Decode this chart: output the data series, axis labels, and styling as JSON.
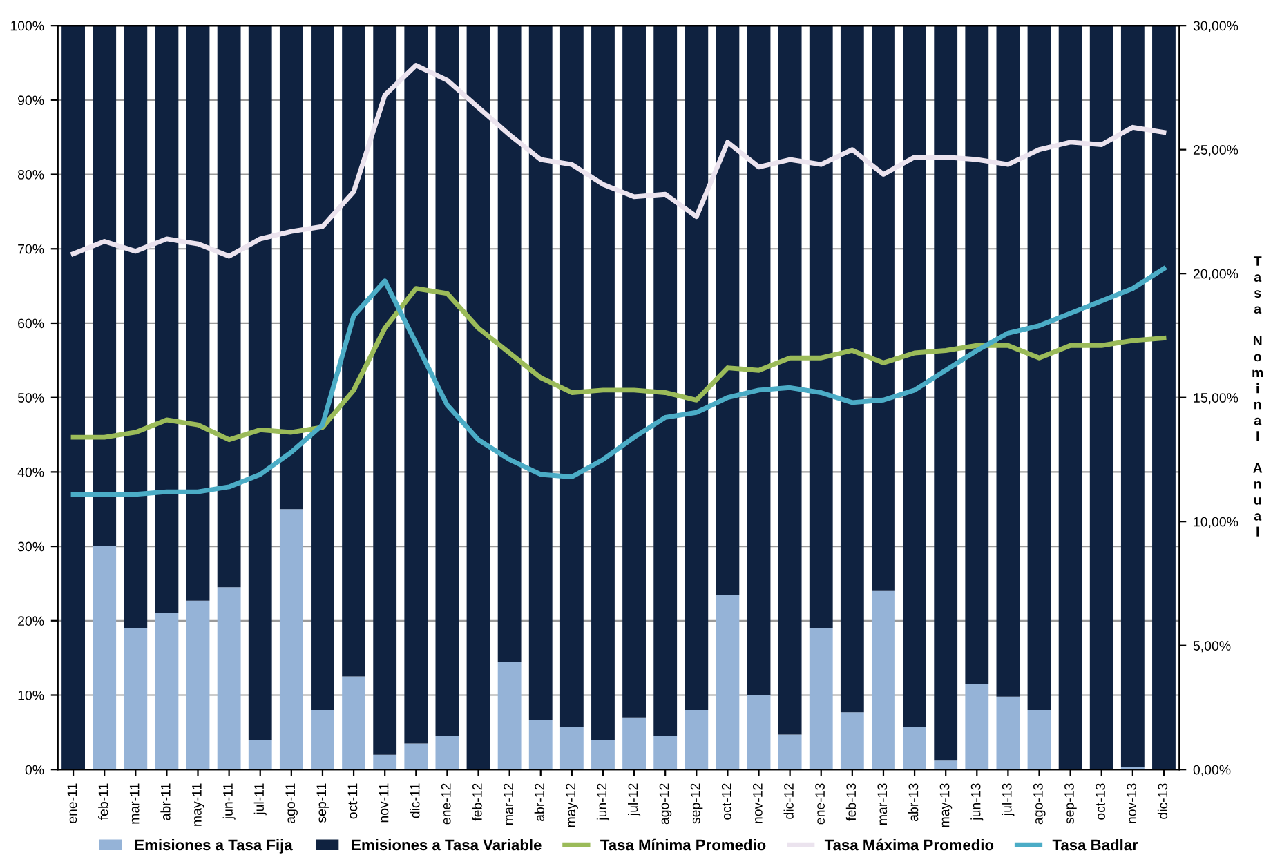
{
  "chart_data": {
    "type": "bar",
    "stacked": true,
    "y2label": "Tasa Nominal Anual",
    "legend": "bottom",
    "grid": "y",
    "categories": [
      "ene-11",
      "feb-11",
      "mar-11",
      "abr-11",
      "may-11",
      "jun-11",
      "jul-11",
      "ago-11",
      "sep-11",
      "oct-11",
      "nov-11",
      "dic-11",
      "ene-12",
      "feb-12",
      "mar-12",
      "abr-12",
      "may-12",
      "jun-12",
      "jul-12",
      "ago-12",
      "sep-12",
      "oct-12",
      "nov-12",
      "dic-12",
      "ene-13",
      "feb-13",
      "mar-13",
      "abr-13",
      "may-13",
      "jun-13",
      "jul-13",
      "ago-13",
      "sep-13",
      "oct-13",
      "nov-13",
      "dic-13"
    ],
    "ylim": [
      0,
      100
    ],
    "yticks": [
      {
        "value": 0,
        "label": "0%"
      },
      {
        "value": 10,
        "label": "10%"
      },
      {
        "value": 20,
        "label": "20%"
      },
      {
        "value": 30,
        "label": "30%"
      },
      {
        "value": 40,
        "label": "40%"
      },
      {
        "value": 50,
        "label": "50%"
      },
      {
        "value": 60,
        "label": "60%"
      },
      {
        "value": 70,
        "label": "70%"
      },
      {
        "value": 80,
        "label": "80%"
      },
      {
        "value": 90,
        "label": "90%"
      },
      {
        "value": 100,
        "label": "100%"
      }
    ],
    "y2lim": [
      0,
      30
    ],
    "y2ticks": [
      {
        "value": 0,
        "label": "0,00%"
      },
      {
        "value": 5,
        "label": "5,00%"
      },
      {
        "value": 10,
        "label": "10,00%"
      },
      {
        "value": 15,
        "label": "15,00%"
      },
      {
        "value": 20,
        "label": "20,00%"
      },
      {
        "value": 25,
        "label": "25,00%"
      },
      {
        "value": 30,
        "label": "30,00%"
      }
    ],
    "series": [
      {
        "name": "Emisiones a Tasa Fija",
        "color": "#95b3d7",
        "values": [
          0,
          30,
          19,
          21,
          22.7,
          24.5,
          4,
          35,
          8,
          12.5,
          2,
          3.5,
          4.5,
          0,
          14.5,
          6.7,
          5.7,
          4,
          7,
          4.5,
          8,
          23.5,
          10,
          4.7,
          19,
          7.7,
          24,
          5.7,
          1.2,
          11.5,
          9.8,
          8,
          0,
          0,
          0.3,
          0
        ]
      },
      {
        "name": "Emisiones a Tasa Variable",
        "color": "#0f2240",
        "values": [
          100,
          70,
          81,
          79,
          77.3,
          75.5,
          96,
          65,
          92,
          87.5,
          98,
          96.5,
          95.5,
          100,
          85.5,
          93.3,
          94.3,
          96,
          93,
          95.5,
          92,
          76.5,
          90,
          95.3,
          81,
          92.3,
          76,
          94.3,
          98.8,
          88.5,
          90.2,
          92,
          100,
          100,
          99.7,
          100
        ]
      },
      {
        "name": "Tasa Mínima Promedio",
        "type": "line",
        "axis": "y2",
        "color": "#9bbb59",
        "values": [
          13.4,
          13.4,
          13.6,
          14.1,
          13.9,
          13.3,
          13.7,
          13.6,
          13.8,
          15.3,
          17.8,
          19.4,
          19.2,
          17.8,
          16.8,
          15.8,
          15.2,
          15.3,
          15.3,
          15.2,
          14.9,
          16.2,
          16.1,
          16.6,
          16.6,
          16.9,
          16.4,
          16.8,
          16.9,
          17.1,
          17.1,
          16.6,
          17.1,
          17.1,
          17.3,
          17.4
        ]
      },
      {
        "name": "Tasa Máxima Promedio",
        "type": "line",
        "axis": "y2",
        "color": "#ebe3ee",
        "values": [
          20.8,
          21.3,
          20.9,
          21.4,
          21.2,
          20.7,
          21.4,
          21.7,
          21.9,
          23.3,
          27.2,
          28.4,
          27.8,
          26.7,
          25.6,
          24.6,
          24.4,
          23.6,
          23.1,
          23.2,
          22.3,
          25.3,
          24.3,
          24.6,
          24.4,
          25.0,
          24.0,
          24.7,
          24.7,
          24.6,
          24.4,
          25.0,
          25.3,
          25.2,
          25.9,
          25.7
        ]
      },
      {
        "name": "Tasa Badlar",
        "type": "line",
        "axis": "y2",
        "color": "#4bacc6",
        "values": [
          11.1,
          11.1,
          11.1,
          11.2,
          11.2,
          11.4,
          11.9,
          12.8,
          13.9,
          18.3,
          19.7,
          17.2,
          14.7,
          13.3,
          12.5,
          11.9,
          11.8,
          12.5,
          13.4,
          14.2,
          14.4,
          15.0,
          15.3,
          15.4,
          15.2,
          14.8,
          14.9,
          15.3,
          16.1,
          16.9,
          17.6,
          17.9,
          18.4,
          18.9,
          19.4,
          20.2
        ]
      }
    ]
  }
}
